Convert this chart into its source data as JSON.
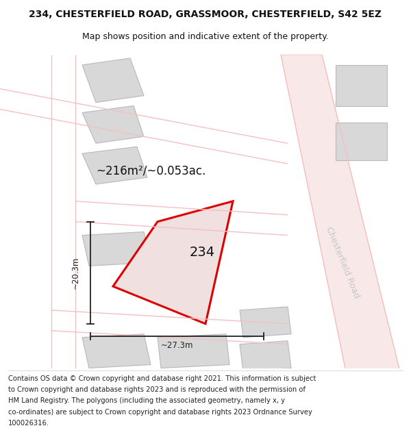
{
  "title_line1": "234, CHESTERFIELD ROAD, GRASSMOOR, CHESTERFIELD, S42 5EZ",
  "title_line2": "Map shows position and indicative extent of the property.",
  "area_label": "~216m²/~0.053ac.",
  "plot_label": "234",
  "dim_h_label": "~27.3m",
  "dim_v_label": "~20.3m",
  "road_label": "Chesterfield Road",
  "map_bg": "#ffffff",
  "road_color": "#f5c0c0",
  "building_fill": "#d8d8d8",
  "building_edge": "#b8b8b8",
  "plot_fill": "#f0e0e0",
  "plot_edge": "#dd0000",
  "dim_color": "#222222",
  "road_text_color": "#c8c8c8",
  "title_fontsize": 10,
  "subtitle_fontsize": 9,
  "footer_fontsize": 7.2,
  "footer_lines": [
    "Contains OS data © Crown copyright and database right 2021. This information is subject",
    "to Crown copyright and database rights 2023 and is reproduced with the permission of",
    "HM Land Registry. The polygons (including the associated geometry, namely x, y",
    "co-ordinates) are subject to Crown copyright and database rights 2023 Ordnance Survey",
    "100026316."
  ]
}
